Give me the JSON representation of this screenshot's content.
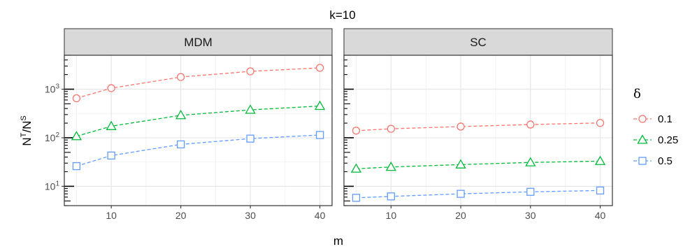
{
  "chart_data": {
    "type": "line",
    "title": "k=10",
    "xlabel": "m",
    "ylabel": {
      "base": "N",
      "sup1": "T",
      "slash": "/N",
      "sup2": "S"
    },
    "y_scale": "log10",
    "ylim": [
      4,
      5000
    ],
    "xlim": [
      3.25,
      41.75
    ],
    "x_ticks": [
      10,
      20,
      30,
      40
    ],
    "y_ticks": [
      {
        "value": 10,
        "base": "10",
        "exp": "1"
      },
      {
        "value": 100,
        "base": "10",
        "exp": "2"
      },
      {
        "value": 1000,
        "base": "10",
        "exp": "3"
      }
    ],
    "grid": true,
    "legend": {
      "title": "δ",
      "position": "right",
      "entries": [
        "0.1",
        "0.25",
        "0.5"
      ]
    },
    "x": [
      5,
      10,
      20,
      30,
      40
    ],
    "panels": [
      {
        "strip": "MDM",
        "series": [
          {
            "name": "0.1",
            "color": "#F8766D",
            "shape": "circle",
            "values": [
              650,
              1050,
              1780,
              2330,
              2750
            ]
          },
          {
            "name": "0.25",
            "color": "#00BA38",
            "shape": "triangle",
            "values": [
              107,
              173,
              290,
              375,
              450
            ]
          },
          {
            "name": "0.5",
            "color": "#619CFF",
            "shape": "square",
            "values": [
              26,
              43,
              73,
              96,
              114
            ]
          }
        ]
      },
      {
        "strip": "SC",
        "series": [
          {
            "name": "0.1",
            "color": "#F8766D",
            "shape": "circle",
            "values": [
              140,
              153,
              170,
              187,
              202
            ]
          },
          {
            "name": "0.25",
            "color": "#00BA38",
            "shape": "triangle",
            "values": [
              23,
              25,
              28,
              31,
              33
            ]
          },
          {
            "name": "0.5",
            "color": "#619CFF",
            "shape": "square",
            "values": [
              5.8,
              6.2,
              7.0,
              7.7,
              8.2
            ]
          }
        ]
      }
    ]
  }
}
